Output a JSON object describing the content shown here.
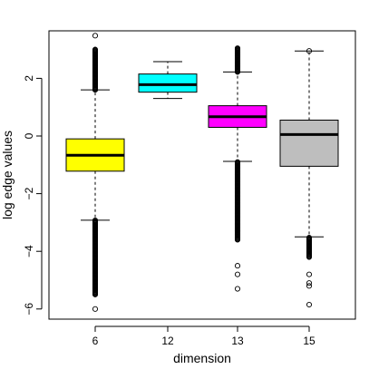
{
  "chart_data": {
    "type": "box",
    "xlabel": "dimension",
    "ylabel": "log edge values",
    "categories": [
      "6",
      "12",
      "13",
      "15"
    ],
    "ylim": [
      -6.3,
      3.6
    ],
    "yticks": [
      -6,
      -4,
      -2,
      0,
      2
    ],
    "ytick_labels": [
      "−6",
      "−4",
      "−2",
      "0",
      "2"
    ],
    "grid": false,
    "boxes": [
      {
        "category": "6",
        "color": "#ffff00",
        "whisker_low": -2.92,
        "q1": -1.22,
        "median": -0.67,
        "q3": -0.1,
        "whisker_high": 1.6,
        "outliers_high_range": [
          1.6,
          3.0
        ],
        "outliers_high_extra": [
          3.48
        ],
        "outliers_low_range": [
          -5.5,
          -2.92
        ],
        "outliers_low_extra": [
          -6.0
        ]
      },
      {
        "category": "12",
        "color": "#00ffff",
        "whisker_low": 1.3,
        "q1": 1.52,
        "median": 1.78,
        "q3": 2.15,
        "whisker_high": 2.58,
        "outliers_high_range": null,
        "outliers_high_extra": [],
        "outliers_low_range": null,
        "outliers_low_extra": []
      },
      {
        "category": "13",
        "color": "#ff00ff",
        "whisker_low": -0.88,
        "q1": 0.3,
        "median": 0.67,
        "q3": 1.05,
        "whisker_high": 2.22,
        "outliers_high_range": [
          2.22,
          3.05
        ],
        "outliers_high_extra": [],
        "outliers_low_range": [
          -3.6,
          -0.88
        ],
        "outliers_low_extra": [
          -4.5,
          -4.8,
          -5.3
        ]
      },
      {
        "category": "15",
        "color": "#bebebe",
        "whisker_low": -3.5,
        "q1": -1.05,
        "median": 0.05,
        "q3": 0.55,
        "whisker_high": 2.95,
        "outliers_high_range": null,
        "outliers_high_extra": [
          2.95
        ],
        "outliers_low_range": [
          -4.2,
          -3.5
        ],
        "outliers_low_extra": [
          -4.8,
          -5.1,
          -5.2,
          -5.85
        ]
      }
    ]
  }
}
